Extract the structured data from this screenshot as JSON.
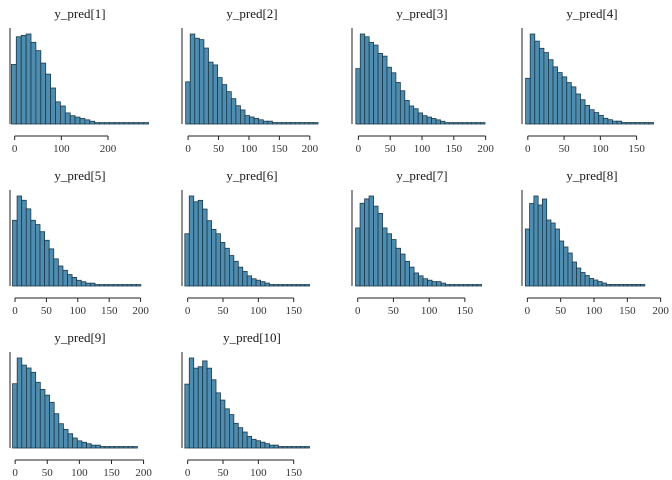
{
  "colors": {
    "bar_fill": "#4f8db0",
    "bar_stroke": "#1b3a4b",
    "axis": "#222222"
  },
  "chart_data": [
    {
      "type": "bar",
      "title": "y_pred[1]",
      "xlim": [
        -10,
        290
      ],
      "xticks": [
        0,
        100,
        200
      ],
      "bin_start": -7,
      "bin_width": 10.5,
      "values": [
        43,
        63,
        64,
        65,
        59,
        53,
        44,
        36,
        26,
        16,
        13,
        8,
        6,
        5,
        4,
        3,
        2,
        1,
        1,
        1,
        1,
        1,
        1,
        1,
        1,
        1,
        1,
        1
      ]
    },
    {
      "type": "bar",
      "title": "y_pred[2]",
      "xlim": [
        -10,
        220
      ],
      "xticks": [
        0,
        50,
        100,
        150,
        200
      ],
      "bin_start": -4,
      "bin_width": 7.5,
      "values": [
        30,
        64,
        61,
        60,
        54,
        44,
        42,
        33,
        28,
        23,
        18,
        13,
        10,
        6,
        5,
        4,
        3,
        2,
        2,
        1,
        1,
        1,
        1,
        1,
        1,
        1,
        1,
        1,
        1
      ]
    },
    {
      "type": "bar",
      "title": "y_pred[3]",
      "xlim": [
        -10,
        210
      ],
      "xticks": [
        0,
        50,
        100,
        150,
        200
      ],
      "bin_start": -4,
      "bin_width": 7,
      "values": [
        40,
        65,
        63,
        59,
        57,
        51,
        49,
        41,
        37,
        30,
        24,
        17,
        13,
        11,
        8,
        6,
        5,
        4,
        3,
        2,
        1,
        1,
        1,
        1,
        1,
        1,
        1,
        1,
        1
      ]
    },
    {
      "type": "bar",
      "title": "y_pred[4]",
      "xlim": [
        -8,
        185
      ],
      "xticks": [
        0,
        50,
        100,
        150
      ],
      "bin_start": -3,
      "bin_width": 6.3,
      "values": [
        32,
        63,
        58,
        53,
        50,
        45,
        40,
        36,
        33,
        29,
        26,
        21,
        17,
        13,
        10,
        8,
        6,
        4,
        3,
        2,
        2,
        1,
        1,
        1,
        1,
        1,
        1,
        1
      ]
    },
    {
      "type": "bar",
      "title": "y_pred[5]",
      "xlim": [
        -8,
        215
      ],
      "xticks": [
        0,
        50,
        100,
        150,
        200
      ],
      "bin_start": -4,
      "bin_width": 7.3,
      "values": [
        46,
        63,
        60,
        54,
        46,
        43,
        38,
        32,
        26,
        19,
        14,
        11,
        8,
        6,
        4,
        3,
        2,
        2,
        1,
        1,
        1,
        1,
        1,
        1,
        1,
        1,
        1,
        1
      ]
    },
    {
      "type": "bar",
      "title": "y_pred[6]",
      "xlim": [
        -8,
        190
      ],
      "xticks": [
        0,
        50,
        100,
        150
      ],
      "bin_start": -4,
      "bin_width": 6.3,
      "values": [
        36,
        62,
        58,
        59,
        53,
        45,
        39,
        36,
        30,
        26,
        21,
        17,
        13,
        10,
        7,
        5,
        4,
        3,
        2,
        1,
        1,
        1,
        1,
        1,
        1,
        1,
        1,
        1
      ]
    },
    {
      "type": "bar",
      "title": "y_pred[7]",
      "xlim": [
        -8,
        188
      ],
      "xticks": [
        0,
        50,
        100,
        150
      ],
      "bin_start": -3,
      "bin_width": 6.3,
      "values": [
        40,
        57,
        60,
        62,
        55,
        50,
        40,
        36,
        32,
        26,
        22,
        17,
        13,
        9,
        7,
        5,
        4,
        3,
        3,
        2,
        1,
        1,
        1,
        1,
        1,
        1,
        1,
        1
      ]
    },
    {
      "type": "bar",
      "title": "y_pred[8]",
      "xlim": [
        -8,
        202
      ],
      "xticks": [
        0,
        50,
        100,
        150,
        200
      ],
      "bin_start": -3,
      "bin_width": 6.4,
      "values": [
        38,
        55,
        60,
        54,
        58,
        44,
        42,
        38,
        30,
        26,
        22,
        16,
        12,
        9,
        7,
        5,
        4,
        3,
        2,
        1,
        1,
        1,
        1,
        1,
        1,
        1,
        1,
        1
      ]
    },
    {
      "type": "bar",
      "title": "y_pred[9]",
      "xlim": [
        -8,
        210
      ],
      "xticks": [
        0,
        50,
        100,
        150,
        200
      ],
      "bin_start": -4,
      "bin_width": 7.2,
      "values": [
        45,
        63,
        58,
        56,
        53,
        46,
        41,
        37,
        32,
        24,
        17,
        13,
        10,
        7,
        5,
        4,
        3,
        2,
        2,
        1,
        1,
        1,
        1,
        1,
        1,
        1,
        1
      ]
    },
    {
      "type": "bar",
      "title": "y_pred[10]",
      "xlim": [
        -8,
        190
      ],
      "xticks": [
        0,
        50,
        100,
        150
      ],
      "bin_start": -4,
      "bin_width": 6.3,
      "values": [
        44,
        62,
        55,
        56,
        60,
        55,
        47,
        38,
        33,
        27,
        23,
        17,
        14,
        11,
        8,
        6,
        5,
        4,
        3,
        2,
        2,
        1,
        1,
        1,
        1,
        1,
        1,
        1
      ]
    }
  ]
}
